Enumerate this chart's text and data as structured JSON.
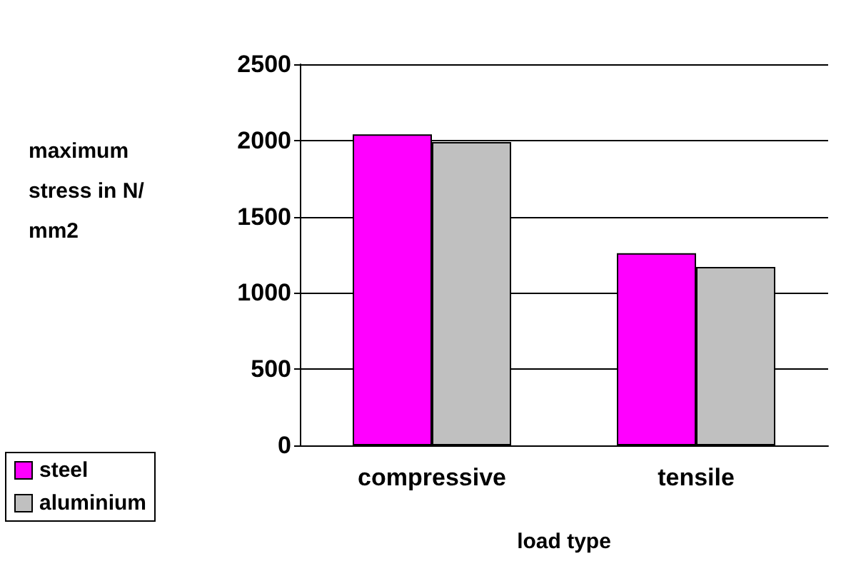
{
  "chart_data": {
    "type": "bar",
    "xlabel": "load type",
    "ylabel": "maximum stress in N/mm2",
    "categories": [
      "compressive",
      "tensile"
    ],
    "series": [
      {
        "name": "steel",
        "color": "#ff00ff",
        "values": [
          2040,
          1260
        ]
      },
      {
        "name": "aluminium",
        "color": "#c0c0c0",
        "values": [
          1990,
          1170
        ]
      }
    ],
    "ylim": [
      0,
      2500
    ],
    "yticks": [
      0,
      500,
      1000,
      1500,
      2000,
      2500
    ],
    "grid": "y",
    "legend": "bottom left"
  }
}
